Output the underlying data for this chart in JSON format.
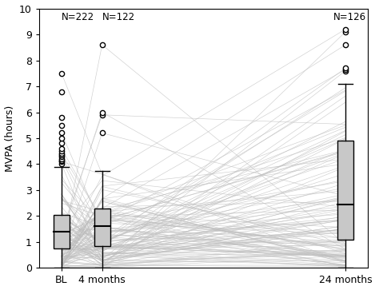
{
  "positions": [
    0,
    1,
    7
  ],
  "xlabels": [
    "BL",
    "4 months",
    "24 months"
  ],
  "ylabel": "MVPA (hours)",
  "ylim": [
    0,
    10
  ],
  "yticks": [
    0,
    1,
    2,
    3,
    4,
    5,
    6,
    7,
    8,
    9,
    10
  ],
  "n_labels": [
    "N=222",
    "N=122",
    "N=126"
  ],
  "box_BL": {
    "q1": 0.75,
    "median": 1.4,
    "q3": 2.05,
    "whislo": 0.0,
    "whishi": 3.9
  },
  "box_4mo": {
    "q1": 0.85,
    "median": 1.6,
    "q3": 2.3,
    "whislo": 0.0,
    "whishi": 3.75
  },
  "box_24mo": {
    "q1": 1.1,
    "median": 2.45,
    "q3": 4.9,
    "whislo": 0.0,
    "whishi": 7.1
  },
  "outliers_BL": [
    4.0,
    4.1,
    4.15,
    4.2,
    4.3,
    4.35,
    4.4,
    4.5,
    4.6,
    4.8,
    5.0,
    5.2,
    5.5,
    5.8,
    6.8,
    7.5
  ],
  "outliers_4mo": [
    5.2,
    5.9,
    6.0,
    8.6
  ],
  "outliers_24mo": [
    7.6,
    7.65,
    7.7,
    8.6,
    9.1,
    9.2
  ],
  "box_color": "#c8c8c8",
  "box_linecolor": "#000000",
  "line_color": "#bebebe",
  "outlier_facecolor": "white",
  "outlier_edgecolor": "black",
  "background_color": "#ffffff",
  "n_BL": 222,
  "n_4mo": 122,
  "n_24mo": 126,
  "seed": 42
}
